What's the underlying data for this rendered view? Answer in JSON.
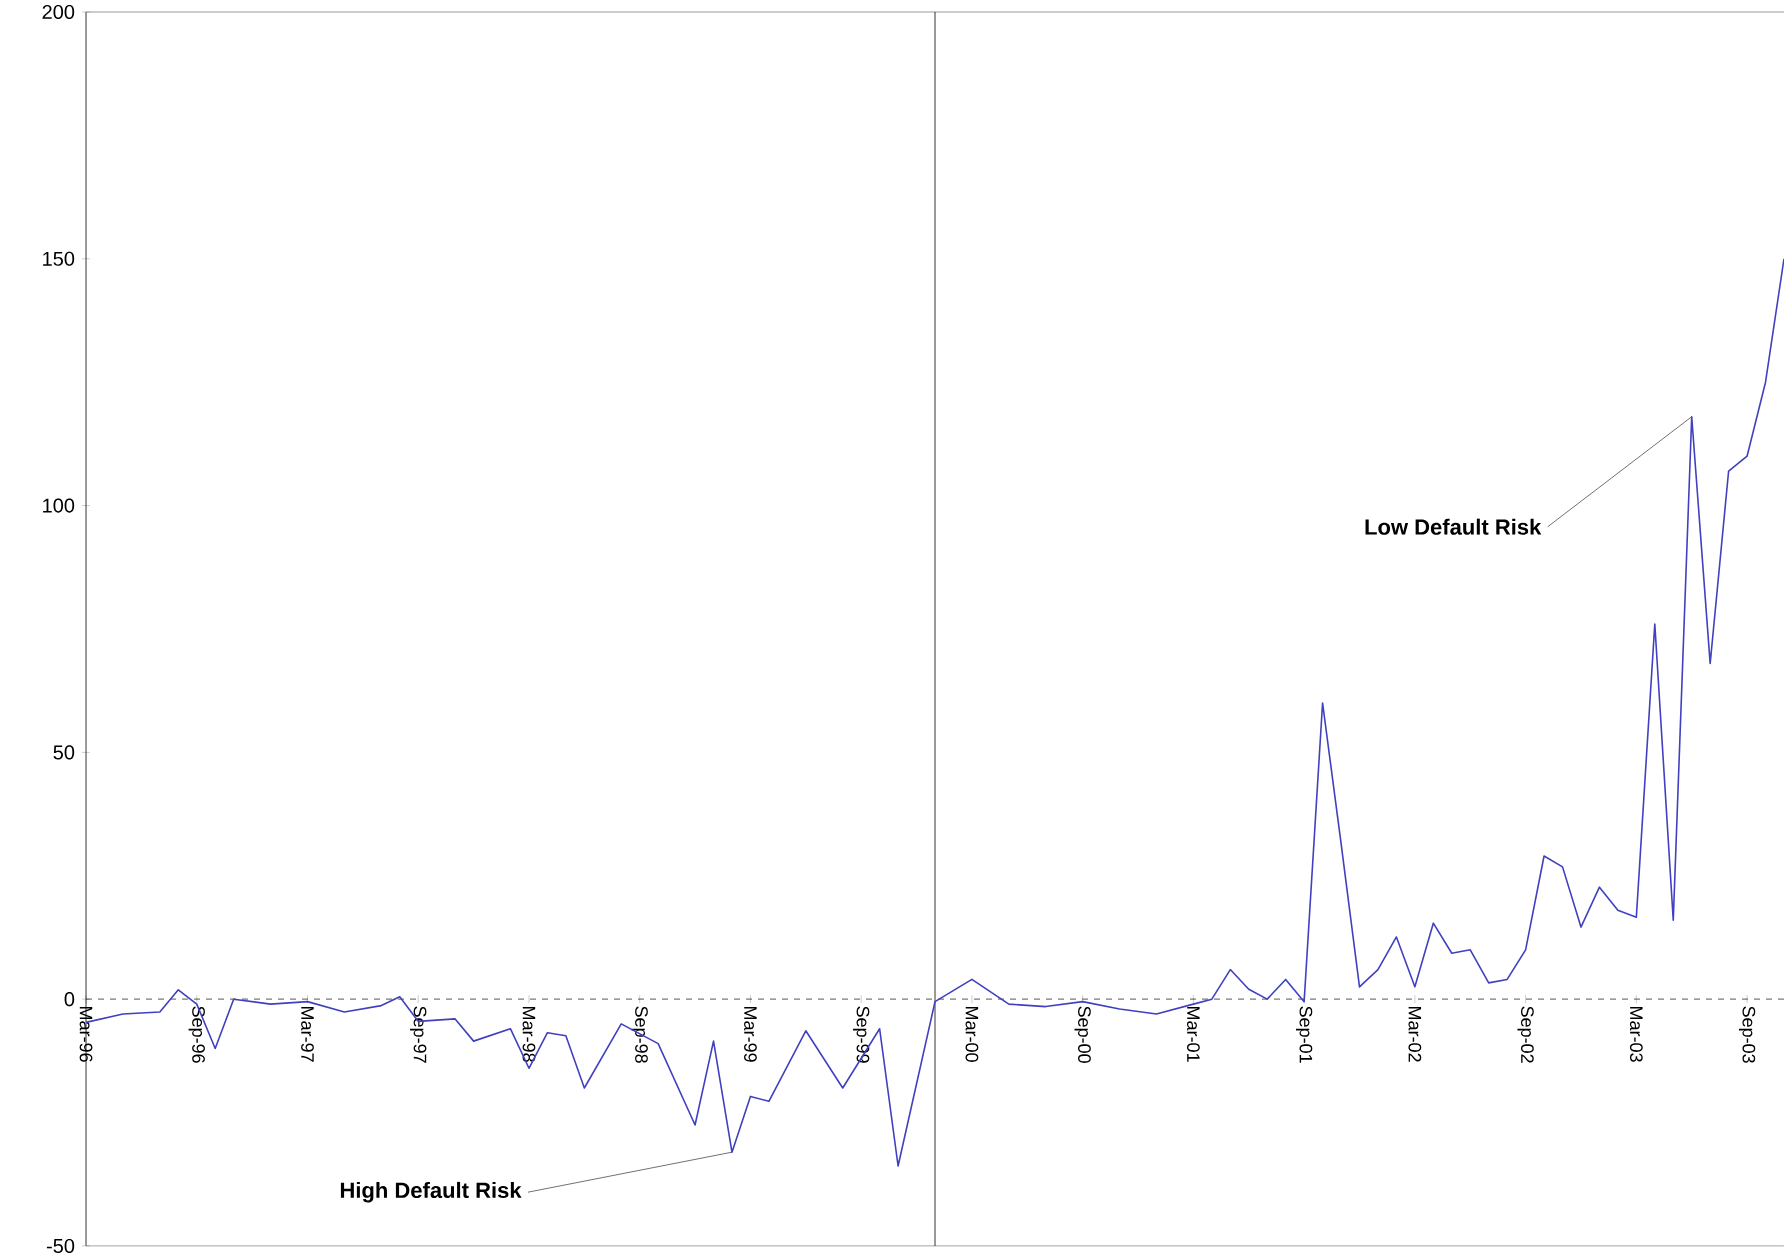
{
  "chart_data": {
    "type": "line",
    "x": [
      "1996-03",
      "1996-05",
      "1996-07",
      "1996-08",
      "1996-09",
      "1996-10",
      "1996-11",
      "1997-01",
      "1997-03",
      "1997-05",
      "1997-07",
      "1997-08",
      "1997-09",
      "1997-11",
      "1997-12",
      "1998-02",
      "1998-03",
      "1998-04",
      "1998-05",
      "1998-06",
      "1998-08",
      "1998-10",
      "1998-12",
      "1999-01",
      "1999-02",
      "1999-03",
      "1999-04",
      "1999-06",
      "1999-08",
      "1999-10",
      "1999-11",
      "2000-01",
      "2000-03",
      "2000-05",
      "2000-07",
      "2000-09",
      "2000-11",
      "2001-01",
      "2001-03",
      "2001-04",
      "2001-05",
      "2001-06",
      "2001-07",
      "2001-08",
      "2001-09",
      "2001-10",
      "2001-11",
      "2001-12",
      "2002-01",
      "2002-02",
      "2002-03",
      "2002-04",
      "2002-05",
      "2002-06",
      "2002-07",
      "2002-08",
      "2002-09",
      "2002-10",
      "2002-11",
      "2002-12",
      "2003-01",
      "2003-02",
      "2003-03",
      "2003-04",
      "2003-05",
      "2003-06",
      "2003-07",
      "2003-08",
      "2003-09",
      "2003-10",
      "2003-11"
    ],
    "series": [
      {
        "color": "#4040c0",
        "values": [
          -4.7,
          -3,
          -2.6,
          1.9,
          -1,
          -10,
          0,
          -1,
          -0.5,
          -2.6,
          -1.3,
          0.5,
          -4.5,
          -4,
          -8.5,
          -6,
          -14,
          -6.8,
          -7.4,
          -18,
          -5,
          -9,
          -25.5,
          -8.5,
          -31,
          -19.7,
          -20.7,
          -6.4,
          -18,
          -6,
          -33.8,
          -0.5,
          4,
          -1,
          -1.5,
          -0.5,
          -2,
          -3,
          -1,
          0,
          6,
          2,
          0,
          4,
          -0.5,
          60,
          31.6,
          2.5,
          6,
          12.6,
          2.5,
          15.4,
          9.3,
          10,
          3.3,
          4,
          10,
          29,
          26.8,
          14.6,
          22.7,
          18,
          16.6,
          76,
          16,
          118,
          68,
          107,
          110,
          125,
          150
        ]
      }
    ],
    "xlim": [
      "1996-03",
      "2003-11"
    ],
    "xticks": [
      {
        "value": "1996-03",
        "label": "Mar-96"
      },
      {
        "value": "1996-09",
        "label": "Sep-96"
      },
      {
        "value": "1997-03",
        "label": "Mar-97"
      },
      {
        "value": "1997-09",
        "label": "Sep-97"
      },
      {
        "value": "1998-03",
        "label": "Mar-98"
      },
      {
        "value": "1998-09",
        "label": "Sep-98"
      },
      {
        "value": "1999-03",
        "label": "Mar-99"
      },
      {
        "value": "1999-09",
        "label": "Sep-99"
      },
      {
        "value": "2000-03",
        "label": "Mar-00"
      },
      {
        "value": "2000-09",
        "label": "Sep-00"
      },
      {
        "value": "2001-03",
        "label": "Mar-01"
      },
      {
        "value": "2001-09",
        "label": "Sep-01"
      },
      {
        "value": "2002-03",
        "label": "Mar-02"
      },
      {
        "value": "2002-09",
        "label": "Sep-02"
      },
      {
        "value": "2003-03",
        "label": "Mar-03"
      },
      {
        "value": "2003-09",
        "label": "Sep-03"
      }
    ],
    "ylim": [
      -50,
      200
    ],
    "yticks": [
      -50,
      0,
      50,
      100,
      150,
      200
    ],
    "ref_lines": [
      {
        "axis": "y",
        "value": 0,
        "color": "#000000",
        "line_style": "dashed"
      },
      {
        "axis": "x",
        "value": "2000-01",
        "color": "#000000",
        "line_style": "solid"
      }
    ],
    "annotations": [
      {
        "text": "Low Default Risk",
        "x": "2003-06",
        "y": 118
      },
      {
        "text": "High Default Risk",
        "x": "1999-02",
        "y": -31
      }
    ]
  }
}
